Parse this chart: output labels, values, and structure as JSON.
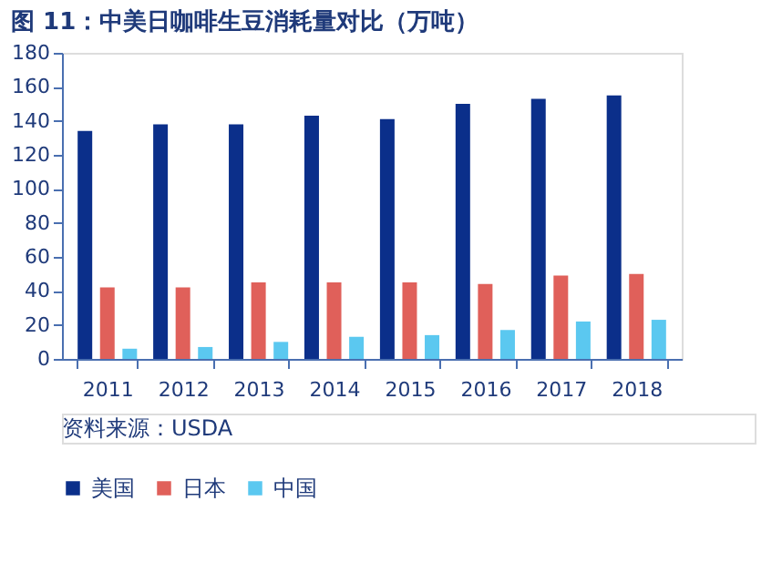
{
  "chart_data": {
    "type": "bar",
    "title": "图 11：中美日咖啡生豆消耗量对比（万吨）",
    "categories": [
      "2011",
      "2012",
      "2013",
      "2014",
      "2015",
      "2016",
      "2017",
      "2018"
    ],
    "series": [
      {
        "name": "美国",
        "color": "#0b2f8a",
        "values": [
          134,
          138,
          138,
          143,
          141,
          150,
          153,
          155
        ]
      },
      {
        "name": "日本",
        "color": "#e0605a",
        "values": [
          42,
          42,
          45,
          45,
          45,
          44,
          49,
          50
        ]
      },
      {
        "name": "中国",
        "color": "#5bc8f0",
        "values": [
          6,
          7,
          10,
          13,
          14,
          17,
          22,
          23
        ]
      }
    ],
    "ylim": [
      0,
      180
    ],
    "yticks": [
      0,
      20,
      40,
      60,
      80,
      100,
      120,
      140,
      160,
      180
    ],
    "grid": false,
    "legend": "bottom",
    "annotations": [
      "资料来源：USDA"
    ]
  }
}
